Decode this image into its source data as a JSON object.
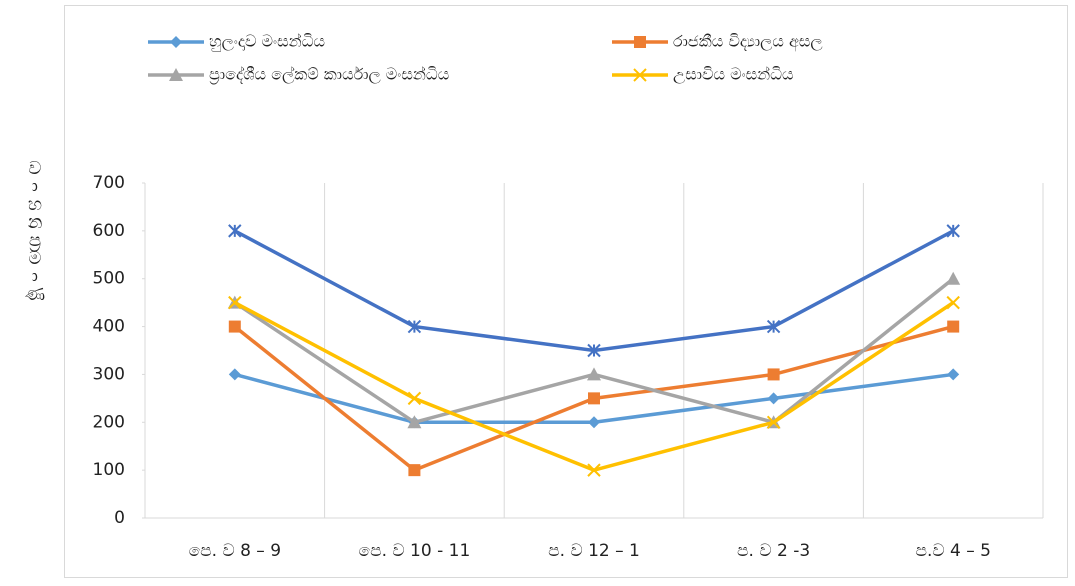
{
  "chart_data": {
    "type": "line",
    "y_label": "වාහනප්‍රමාණ",
    "categories": [
      "පෙ. ව 8  – 9",
      "පෙ. ව 10 - 11",
      "ප. ව 12 – 1",
      "ප. ව 2  -3",
      "ප.ව 4 – 5"
    ],
    "series": [
      {
        "name": "හුලංදාව මංසන්ධිය",
        "color": "#5b9bd5",
        "marker": "diamond",
        "values": [
          300,
          200,
          200,
          250,
          300
        ]
      },
      {
        "name": "රාජකීය විද්‍යාලය අසල",
        "color": "#ed7d31",
        "marker": "square",
        "values": [
          400,
          100,
          250,
          300,
          400
        ]
      },
      {
        "name": "ප්‍රාදේශීය ලේකම් කාර්යාල මංසන්ධිය",
        "color": "#a5a5a5",
        "marker": "triangle",
        "values": [
          450,
          200,
          300,
          200,
          500
        ]
      },
      {
        "name": "උසාවිය මංසන්ධිය",
        "color": "#ffc000",
        "marker": "x",
        "values": [
          450,
          250,
          100,
          200,
          450
        ]
      },
      {
        "color": "#4472c4",
        "marker": "asterisk",
        "values": [
          600,
          400,
          350,
          400,
          600
        ]
      }
    ],
    "ylim": [
      0,
      700
    ],
    "yticks": [
      0,
      100,
      200,
      300,
      400,
      500,
      600,
      700
    ],
    "grid": true,
    "legend": "top"
  }
}
